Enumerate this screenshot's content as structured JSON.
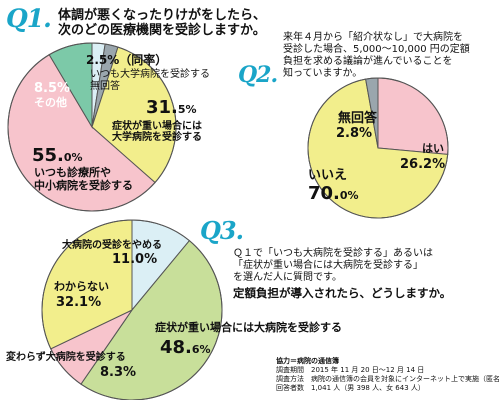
{
  "q1": {
    "label": "Q1.",
    "title_line1": "体調が悪くなったりけがをしたら、",
    "title_line2": "次のどの医療機関を受診しますか。",
    "chart_data": {
      "type": "pie",
      "slices": [
        {
          "name": "いつも大学病院を受診する",
          "value": 2.5,
          "pct_main": "2.5",
          "pct_unit": "%",
          "suffix": "（同率）",
          "color": "#dbeff5"
        },
        {
          "name": "無回答",
          "value": 2.5,
          "color": "#9aa6ad"
        },
        {
          "name": "症状が重い場合には大学病院を受診する",
          "value": 31.5,
          "pct_main": "31.5",
          "pct_unit": "%",
          "color": "#f2ee8c"
        },
        {
          "name": "いつも診療所や中小病院を受診する",
          "value": 55.0,
          "pct_main": "55.0",
          "pct_unit": "%",
          "color": "#f7c4cc"
        },
        {
          "name": "その他",
          "value": 8.5,
          "pct_main": "8.5",
          "pct_unit": "%",
          "color": "#7cc9a8"
        }
      ]
    },
    "labels": {
      "s0_pct": "2.5%（同率）",
      "s0_name": "いつも大学病院を受診する",
      "s1_name": "無回答",
      "s2_pct_main": "31.",
      "s2_pct_dec": "5%",
      "s2_name_l1": "症状が重い場合には",
      "s2_name_l2": "大学病院を受診する",
      "s3_pct_main": "55.",
      "s3_pct_dec": "0%",
      "s3_name_l1": "いつも診療所や",
      "s3_name_l2": "中小病院を受診する",
      "s4_pct": "8.5%",
      "s4_name": "その他"
    }
  },
  "q2": {
    "label": "Q2.",
    "text_l1": "来年４月から「紹介状なし」で大病院を",
    "text_l2": "受診した場合、5,000～10,000 円の定額",
    "text_l3": "負担を求める議論が進んでいることを",
    "text_l4": "知っていますか。",
    "chart_data": {
      "type": "pie",
      "slices": [
        {
          "name": "はい",
          "value": 26.2,
          "color": "#f7c4cc"
        },
        {
          "name": "いいえ",
          "value": 70.0,
          "color": "#f2ee8c"
        },
        {
          "name": "無回答",
          "value": 2.8,
          "color": "#9aa6ad"
        }
      ]
    },
    "labels": {
      "yes_name": "はい",
      "yes_pct": "26.2%",
      "no_name": "いいえ",
      "no_pct_main": "70.",
      "no_pct_dec": "0%",
      "na_name": "無回答",
      "na_pct": "2.8%"
    }
  },
  "q3": {
    "label": "Q3.",
    "text_l1": "Ｑ１で「いつも大病院を受診する」あるいは",
    "text_l2": "「症状が重い場合には大病院を受診する」",
    "text_l3": "を選んだ人に質問です。",
    "question": "定額負担が導入されたら、どうしますか。",
    "chart_data": {
      "type": "pie",
      "slices": [
        {
          "name": "大病院の受診をやめる",
          "value": 11.0,
          "color": "#dbeff5"
        },
        {
          "name": "症状が重い場合には大病院を受診する",
          "value": 48.6,
          "color": "#c8df9a"
        },
        {
          "name": "変わらず大病院を受診する",
          "value": 8.3,
          "color": "#f7c4cc"
        },
        {
          "name": "わからない",
          "value": 32.1,
          "color": "#f2ee8c"
        }
      ]
    },
    "labels": {
      "quit_name": "大病院の受診をやめる",
      "quit_pct": "11.0%",
      "heavy_name": "症状が重い場合には大病院を受診する",
      "heavy_pct_main": "48.",
      "heavy_pct_dec": "6%",
      "same_name": "変わらず大病院を受診する",
      "same_pct": "8.3%",
      "unk_name": "わからない",
      "unk_pct": "32.1%"
    }
  },
  "footer": {
    "line1": "協力＝病院の通信簿",
    "line2": "調査期間　2015 年 11 月 20 日～12 月 14 日",
    "line3": "調査方法　病院の通信簿の会員を対象にインターネット上で実施（匿名）",
    "line4": "回答者数　1,041 人（男 398 人、女 643 人）"
  }
}
